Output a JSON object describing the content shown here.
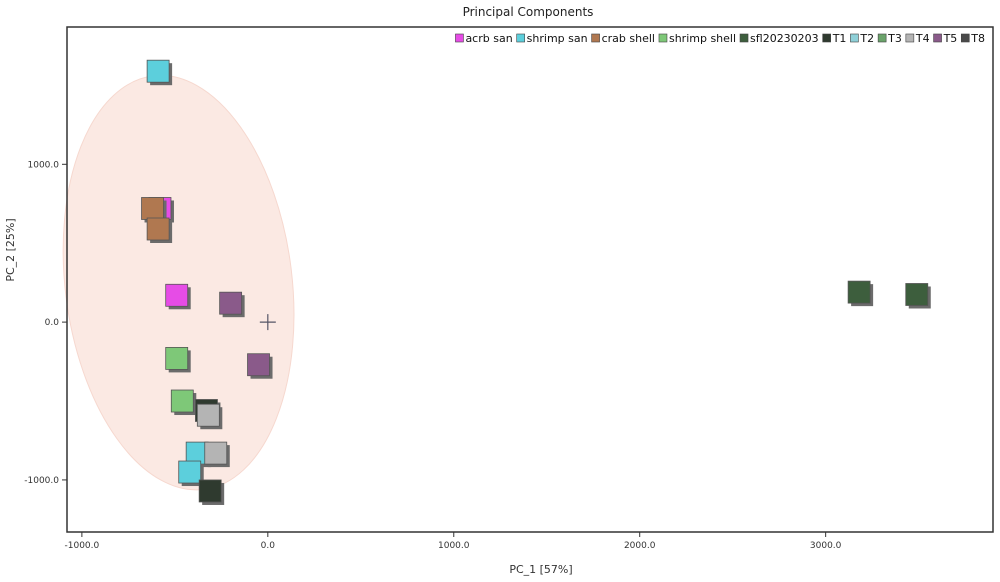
{
  "chart_data": {
    "type": "scatter",
    "title": "Principal Components",
    "xlabel": "PC_1 [57%]",
    "ylabel": "PC_2 [25%]",
    "xlim": [
      -1080,
      3900
    ],
    "ylim": [
      -1330,
      1870
    ],
    "xticks": [
      -1000,
      0,
      1000,
      2000,
      3000
    ],
    "yticks": [
      -1000,
      0,
      1000
    ],
    "xtick_labels": [
      "-1000.0",
      "0.0",
      "1000.0",
      "2000.0",
      "3000.0"
    ],
    "ytick_labels": [
      "-1000.0",
      "0.0",
      "1000.0"
    ],
    "grid": false,
    "legend_position": "top-right",
    "series": [
      {
        "name": "acrb san",
        "color": "#e64ce6",
        "points": [
          [
            -580,
            720
          ],
          [
            -490,
            170
          ]
        ]
      },
      {
        "name": "shrimp san",
        "color": "#5ccfdc",
        "points": [
          [
            -590,
            1590
          ],
          [
            -380,
            -830
          ],
          [
            -420,
            -950
          ]
        ]
      },
      {
        "name": "crab shell",
        "color": "#b07850",
        "points": [
          [
            -620,
            720
          ],
          [
            -590,
            590
          ]
        ]
      },
      {
        "name": "shrimp shell",
        "color": "#7ec878",
        "points": [
          [
            -490,
            -230
          ],
          [
            -460,
            -500
          ]
        ]
      },
      {
        "name": "sfl20230203",
        "color": "#3d5e3d",
        "points": [
          [
            3180,
            190
          ],
          [
            3490,
            175
          ]
        ]
      },
      {
        "name": "T1",
        "color": "#2f3a2f",
        "points": [
          [
            -310,
            -1070
          ],
          [
            -330,
            -560
          ]
        ]
      },
      {
        "name": "T2",
        "color": "#8fd0d8",
        "points": []
      },
      {
        "name": "T3",
        "color": "#6aa36a",
        "points": []
      },
      {
        "name": "T4",
        "color": "#b4b4b4",
        "points": [
          [
            -280,
            -830
          ],
          [
            -320,
            -590
          ]
        ]
      },
      {
        "name": "T5",
        "color": "#8a5a8a",
        "points": [
          [
            -200,
            120
          ],
          [
            -50,
            -270
          ]
        ]
      },
      {
        "name": "T8",
        "color": "#4a4a4a",
        "points": []
      }
    ],
    "center_marker": [
      0,
      0
    ],
    "confidence_ellipse": {
      "cx": -480,
      "cy": 250,
      "rx": 610,
      "ry": 1320,
      "rotation_deg": -7,
      "color": "#fbe9e3"
    }
  }
}
